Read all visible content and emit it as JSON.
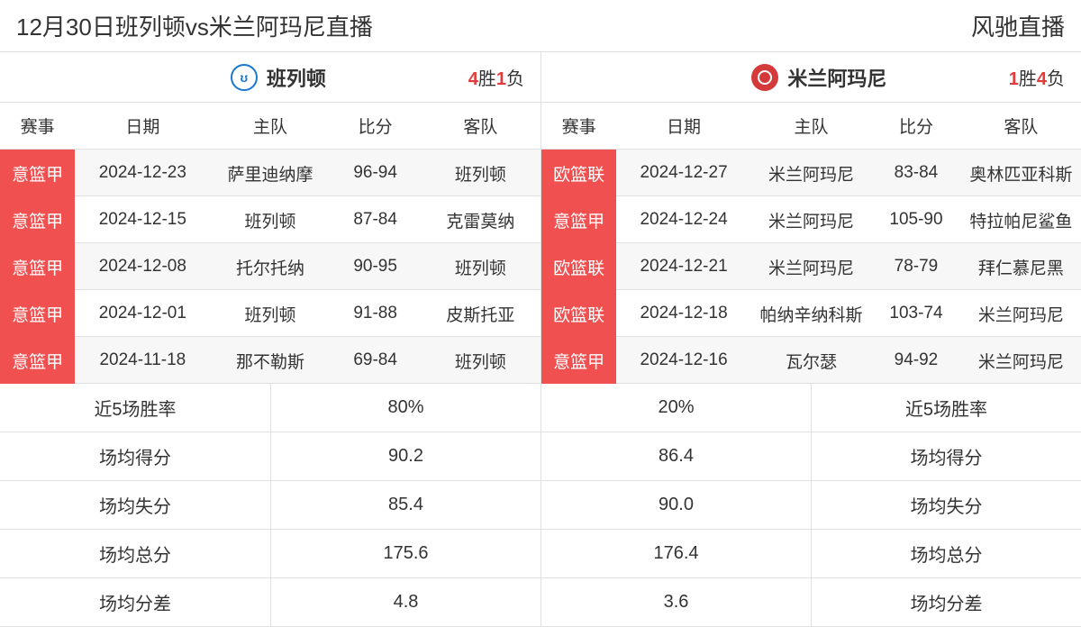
{
  "header": {
    "title": "12月30日班列顿vs米兰阿玛尼直播",
    "brand": "风驰直播"
  },
  "columns": {
    "comp": "赛事",
    "date": "日期",
    "home": "主队",
    "score": "比分",
    "away": "客队"
  },
  "teamA": {
    "name": "班列顿",
    "logo_letter": "ʊ",
    "record": {
      "win_n": "4",
      "win_lbl": "胜",
      "lose_n": "1",
      "lose_lbl": "负"
    },
    "rows": [
      {
        "comp": "意篮甲",
        "date": "2024-12-23",
        "home": "萨里迪纳摩",
        "score": "96-94",
        "away": "班列顿"
      },
      {
        "comp": "意篮甲",
        "date": "2024-12-15",
        "home": "班列顿",
        "score": "87-84",
        "away": "克雷莫纳"
      },
      {
        "comp": "意篮甲",
        "date": "2024-12-08",
        "home": "托尔托纳",
        "score": "90-95",
        "away": "班列顿"
      },
      {
        "comp": "意篮甲",
        "date": "2024-12-01",
        "home": "班列顿",
        "score": "91-88",
        "away": "皮斯托亚"
      },
      {
        "comp": "意篮甲",
        "date": "2024-11-18",
        "home": "那不勒斯",
        "score": "69-84",
        "away": "班列顿"
      }
    ]
  },
  "teamB": {
    "name": "米兰阿玛尼",
    "logo_letter": "",
    "record": {
      "win_n": "1",
      "win_lbl": "胜",
      "lose_n": "4",
      "lose_lbl": "负"
    },
    "rows": [
      {
        "comp": "欧篮联",
        "date": "2024-12-27",
        "home": "米兰阿玛尼",
        "score": "83-84",
        "away": "奥林匹亚科斯"
      },
      {
        "comp": "意篮甲",
        "date": "2024-12-24",
        "home": "米兰阿玛尼",
        "score": "105-90",
        "away": "特拉帕尼鲨鱼"
      },
      {
        "comp": "欧篮联",
        "date": "2024-12-21",
        "home": "米兰阿玛尼",
        "score": "78-79",
        "away": "拜仁慕尼黑"
      },
      {
        "comp": "欧篮联",
        "date": "2024-12-18",
        "home": "帕纳辛纳科斯",
        "score": "103-74",
        "away": "米兰阿玛尼"
      },
      {
        "comp": "意篮甲",
        "date": "2024-12-16",
        "home": "瓦尔瑟",
        "score": "94-92",
        "away": "米兰阿玛尼"
      }
    ]
  },
  "stats": {
    "labels": {
      "winrate": "近5场胜率",
      "pts_for": "场均得分",
      "pts_against": "场均失分",
      "pts_total": "场均总分",
      "pts_diff": "场均分差"
    },
    "a": {
      "winrate": "80%",
      "pts_for": "90.2",
      "pts_against": "85.4",
      "pts_total": "175.6",
      "pts_diff": "4.8"
    },
    "b": {
      "winrate": "20%",
      "pts_for": "86.4",
      "pts_against": "90.0",
      "pts_total": "176.4",
      "pts_diff": "3.6"
    }
  }
}
